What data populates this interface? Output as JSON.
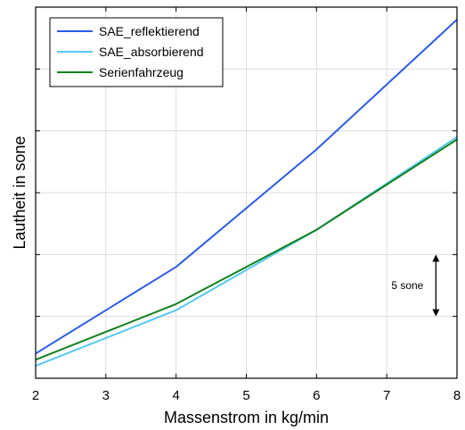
{
  "chart_data": {
    "type": "line",
    "title": "",
    "xlabel": "Massenstrom in kg/min",
    "ylabel": "Lautheit in sone",
    "xlim": [
      2,
      8
    ],
    "ylim": [
      0,
      30
    ],
    "x_ticks": [
      "2",
      "3",
      "4",
      "5",
      "6",
      "7",
      "8"
    ],
    "y_ticks": [],
    "grid": true,
    "legend_position": "top-left",
    "x": [
      2,
      4,
      6,
      8
    ],
    "series": [
      {
        "name": "SAE_reflektierend",
        "color": "#2b5ce6",
        "values": [
          2.0,
          9.0,
          18.5,
          29.0
        ]
      },
      {
        "name": "SAE_absorbierend",
        "color": "#55c8f0",
        "values": [
          1.0,
          5.5,
          12.0,
          19.5
        ]
      },
      {
        "name": "Serienfahrzeug",
        "color": "#11821e",
        "values": [
          1.5,
          6.0,
          12.0,
          19.3
        ]
      }
    ],
    "annotation": {
      "text": "5 sone",
      "x": 7.7,
      "y_from": 5,
      "y_to": 10
    }
  }
}
